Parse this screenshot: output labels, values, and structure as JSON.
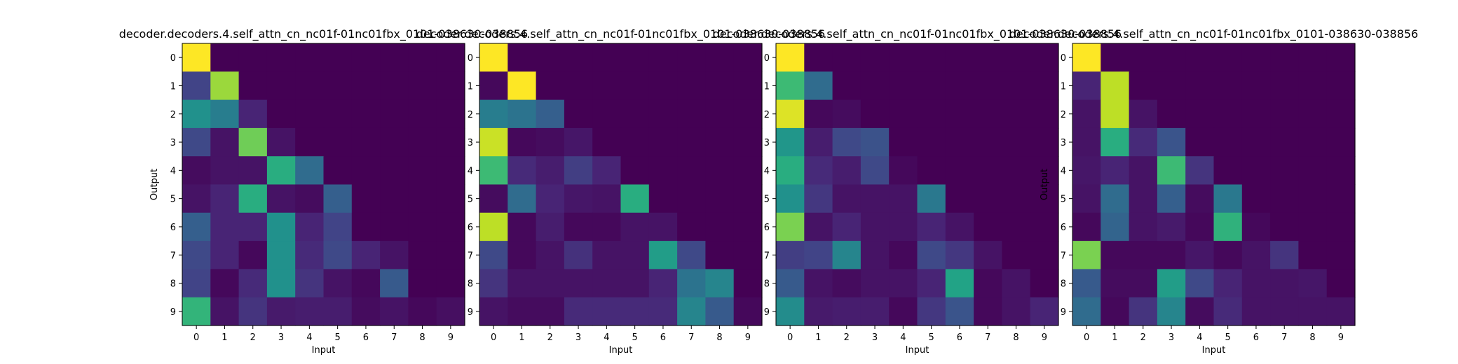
{
  "chart_data": [
    {
      "type": "heatmap",
      "title": "decoder.decoders.4.self_attn_cn_nc01f-01nc01fbx_0101-038630-038856",
      "xlabel": "Input",
      "ylabel": "Output",
      "x_ticks": [
        "0",
        "1",
        "2",
        "3",
        "4",
        "5",
        "6",
        "7",
        "8",
        "9"
      ],
      "y_ticks": [
        "0",
        "1",
        "2",
        "3",
        "4",
        "5",
        "6",
        "7",
        "8",
        "9"
      ],
      "colormap": "viridis",
      "values": [
        [
          1.0,
          0.0,
          0.0,
          0.0,
          0.0,
          0.0,
          0.0,
          0.0,
          0.0,
          0.0
        ],
        [
          0.2,
          0.85,
          0.0,
          0.0,
          0.0,
          0.0,
          0.0,
          0.0,
          0.0,
          0.0
        ],
        [
          0.5,
          0.42,
          0.1,
          0.0,
          0.0,
          0.0,
          0.0,
          0.0,
          0.0,
          0.0
        ],
        [
          0.22,
          0.05,
          0.78,
          0.05,
          0.0,
          0.0,
          0.0,
          0.0,
          0.0,
          0.0
        ],
        [
          0.03,
          0.05,
          0.05,
          0.62,
          0.35,
          0.0,
          0.0,
          0.0,
          0.0,
          0.0
        ],
        [
          0.05,
          0.1,
          0.62,
          0.05,
          0.03,
          0.3,
          0.0,
          0.0,
          0.0,
          0.0
        ],
        [
          0.3,
          0.1,
          0.1,
          0.5,
          0.1,
          0.2,
          0.0,
          0.0,
          0.0,
          0.0
        ],
        [
          0.22,
          0.1,
          0.02,
          0.5,
          0.12,
          0.22,
          0.1,
          0.05,
          0.0,
          0.0
        ],
        [
          0.2,
          0.02,
          0.12,
          0.5,
          0.15,
          0.05,
          0.02,
          0.28,
          0.0,
          0.0
        ],
        [
          0.65,
          0.05,
          0.15,
          0.07,
          0.08,
          0.08,
          0.03,
          0.05,
          0.02,
          0.04
        ]
      ]
    },
    {
      "type": "heatmap",
      "title": "decoder.decoders.4.self_attn_cn_nc01f-01nc01fbx_0101-038630-038856",
      "xlabel": "Input",
      "ylabel": "",
      "x_ticks": [
        "0",
        "1",
        "2",
        "3",
        "4",
        "5",
        "6",
        "7",
        "8",
        "9"
      ],
      "y_ticks": [
        "0",
        "1",
        "2",
        "3",
        "4",
        "5",
        "6",
        "7",
        "8",
        "9"
      ],
      "colormap": "viridis",
      "values": [
        [
          1.0,
          0.0,
          0.0,
          0.0,
          0.0,
          0.0,
          0.0,
          0.0,
          0.0,
          0.0
        ],
        [
          0.02,
          1.0,
          0.0,
          0.0,
          0.0,
          0.0,
          0.0,
          0.0,
          0.0,
          0.0
        ],
        [
          0.42,
          0.38,
          0.3,
          0.0,
          0.0,
          0.0,
          0.0,
          0.0,
          0.0,
          0.0
        ],
        [
          0.92,
          0.02,
          0.03,
          0.06,
          0.0,
          0.0,
          0.0,
          0.0,
          0.0,
          0.0
        ],
        [
          0.68,
          0.12,
          0.08,
          0.18,
          0.1,
          0.0,
          0.0,
          0.0,
          0.0,
          0.0
        ],
        [
          0.03,
          0.35,
          0.1,
          0.06,
          0.05,
          0.62,
          0.0,
          0.0,
          0.0,
          0.0
        ],
        [
          0.9,
          0.02,
          0.08,
          0.02,
          0.02,
          0.05,
          0.05,
          0.0,
          0.0,
          0.0
        ],
        [
          0.22,
          0.02,
          0.05,
          0.14,
          0.05,
          0.05,
          0.55,
          0.22,
          0.0,
          0.0
        ],
        [
          0.15,
          0.05,
          0.05,
          0.05,
          0.05,
          0.05,
          0.1,
          0.38,
          0.45,
          0.0
        ],
        [
          0.05,
          0.03,
          0.03,
          0.12,
          0.12,
          0.12,
          0.12,
          0.45,
          0.28,
          0.02
        ]
      ]
    },
    {
      "type": "heatmap",
      "title": "decoder.decoders.4.self_attn_cn_nc01f-01nc01fbx_0101-038630-038856",
      "xlabel": "Input",
      "ylabel": "",
      "x_ticks": [
        "0",
        "1",
        "2",
        "3",
        "4",
        "5",
        "6",
        "7",
        "8",
        "9"
      ],
      "y_ticks": [
        "0",
        "1",
        "2",
        "3",
        "4",
        "5",
        "6",
        "7",
        "8",
        "9"
      ],
      "colormap": "viridis",
      "values": [
        [
          1.0,
          0.0,
          0.0,
          0.0,
          0.0,
          0.0,
          0.0,
          0.0,
          0.0,
          0.0
        ],
        [
          0.68,
          0.35,
          0.0,
          0.0,
          0.0,
          0.0,
          0.0,
          0.0,
          0.0,
          0.0
        ],
        [
          0.95,
          0.02,
          0.03,
          0.0,
          0.0,
          0.0,
          0.0,
          0.0,
          0.0,
          0.0
        ],
        [
          0.52,
          0.08,
          0.22,
          0.25,
          0.0,
          0.0,
          0.0,
          0.0,
          0.0,
          0.0
        ],
        [
          0.62,
          0.12,
          0.08,
          0.22,
          0.02,
          0.0,
          0.0,
          0.0,
          0.0,
          0.0
        ],
        [
          0.5,
          0.16,
          0.05,
          0.05,
          0.05,
          0.4,
          0.0,
          0.0,
          0.0,
          0.0
        ],
        [
          0.8,
          0.05,
          0.1,
          0.05,
          0.05,
          0.1,
          0.05,
          0.0,
          0.0,
          0.0
        ],
        [
          0.18,
          0.2,
          0.45,
          0.05,
          0.02,
          0.22,
          0.16,
          0.05,
          0.0,
          0.0
        ],
        [
          0.28,
          0.05,
          0.03,
          0.05,
          0.05,
          0.1,
          0.58,
          0.02,
          0.05,
          0.0
        ],
        [
          0.48,
          0.07,
          0.08,
          0.08,
          0.02,
          0.16,
          0.26,
          0.02,
          0.05,
          0.1
        ]
      ]
    },
    {
      "type": "heatmap",
      "title": "decoder.decoders.4.self_attn_cn_nc01f-01nc01fbx_0101-038630-038856",
      "xlabel": "Input",
      "ylabel": "Output",
      "x_ticks": [
        "0",
        "1",
        "2",
        "3",
        "4",
        "5",
        "6",
        "7",
        "8",
        "9"
      ],
      "y_ticks": [
        "0",
        "1",
        "2",
        "3",
        "4",
        "5",
        "6",
        "7",
        "8",
        "9"
      ],
      "colormap": "viridis",
      "values": [
        [
          1.0,
          0.0,
          0.0,
          0.0,
          0.0,
          0.0,
          0.0,
          0.0,
          0.0,
          0.0
        ],
        [
          0.1,
          0.9,
          0.0,
          0.0,
          0.0,
          0.0,
          0.0,
          0.0,
          0.0,
          0.0
        ],
        [
          0.05,
          0.9,
          0.05,
          0.0,
          0.0,
          0.0,
          0.0,
          0.0,
          0.0,
          0.0
        ],
        [
          0.05,
          0.62,
          0.12,
          0.26,
          0.0,
          0.0,
          0.0,
          0.0,
          0.0,
          0.0
        ],
        [
          0.06,
          0.1,
          0.05,
          0.68,
          0.15,
          0.0,
          0.0,
          0.0,
          0.0,
          0.0
        ],
        [
          0.05,
          0.35,
          0.05,
          0.3,
          0.03,
          0.4,
          0.0,
          0.0,
          0.0,
          0.0
        ],
        [
          0.02,
          0.32,
          0.05,
          0.07,
          0.02,
          0.64,
          0.02,
          0.0,
          0.0,
          0.0
        ],
        [
          0.8,
          0.02,
          0.02,
          0.02,
          0.06,
          0.02,
          0.05,
          0.15,
          0.0,
          0.0
        ],
        [
          0.28,
          0.03,
          0.03,
          0.55,
          0.22,
          0.1,
          0.05,
          0.05,
          0.06,
          0.0
        ],
        [
          0.35,
          0.02,
          0.15,
          0.45,
          0.03,
          0.12,
          0.05,
          0.05,
          0.05,
          0.05
        ]
      ]
    }
  ]
}
